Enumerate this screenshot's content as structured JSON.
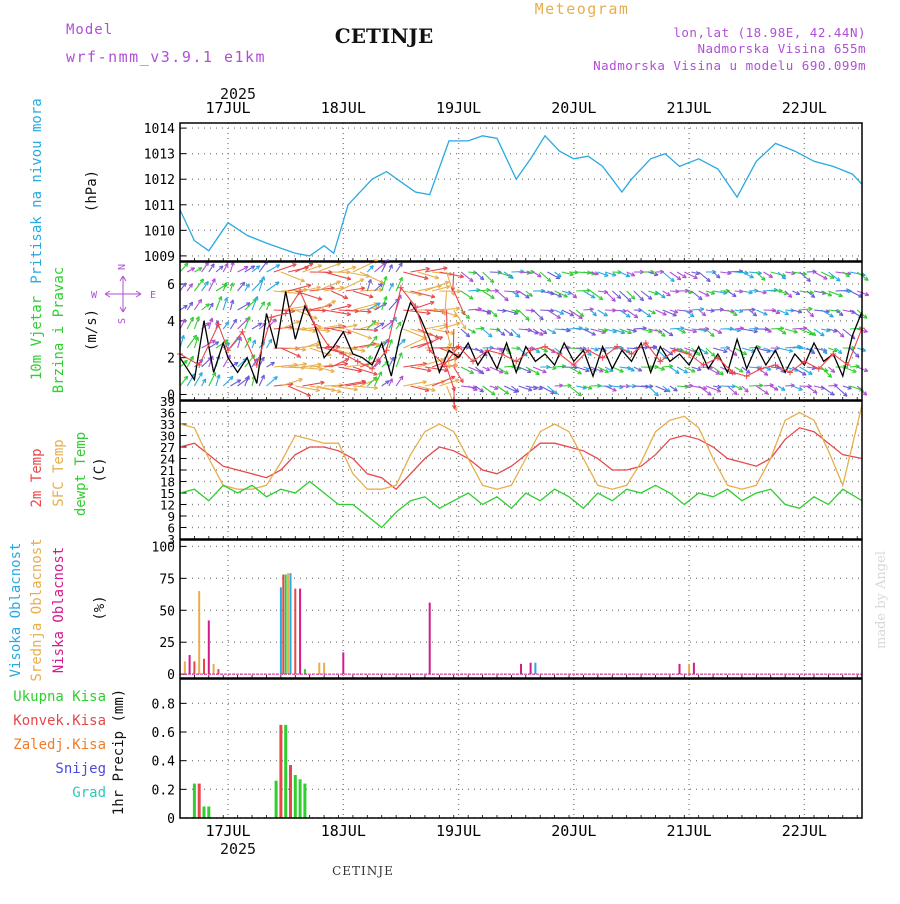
{
  "header": {
    "model_label": "Model",
    "model_name": "wrf-nmm_v3.9.1 e1km",
    "station": "CETINJE",
    "meteogram": "Meteogram",
    "lonlat": "lon,lat (18.98E, 42.44N)",
    "altitude": "Nadmorska Visina 655m",
    "model_altitude": "Nadmorska Visina u modelu 690.099m"
  },
  "time_axis": {
    "year": "2025",
    "days": [
      "17JUL",
      "18JUL",
      "19JUL",
      "20JUL",
      "21JUL",
      "22JUL"
    ],
    "start_hour_offset": -10,
    "end_hour_offset": 132
  },
  "panels": {
    "pressure": {
      "label": "Pritisak na nivou mora",
      "unit": "(hPa)"
    },
    "wind": {
      "label1": "10m Vjetar",
      "label2": "Brzina i Pravac",
      "unit": "(m/s)",
      "compass_w": "W",
      "compass_e": "E",
      "compass_n": "N",
      "compass_s": "S"
    },
    "temp": {
      "label1": "2m Temp",
      "label2": "SFC Temp",
      "label3": "dewpt Temp",
      "unit": "(C)"
    },
    "cloud": {
      "label1": "Visoka Oblacnost",
      "label2": "Srednja Oblacnost",
      "label3": "Niska Oblacnost",
      "unit": "(%)"
    },
    "precip": {
      "label1": "Ukupna Kisa",
      "label2": "Konvek.Kisa",
      "label3": "Zaledj.Kisa",
      "label4": "Snijeg",
      "label5": "Grad",
      "unit": "1hr Precip (mm)"
    }
  },
  "footer": {
    "station": "CETINJE",
    "watermark": "made by Angel"
  },
  "colors": {
    "pressure": "#29a9e1",
    "temp2m": "#e8474a",
    "sfc": "#e8ae4c",
    "dew": "#2fcf2f",
    "high_cloud": "#29a9e1",
    "mid_cloud": "#e8ae4c",
    "low_cloud": "#d21b8c",
    "rain_total": "#2fcf2f",
    "rain_conv": "#e8474a",
    "freezing": "#f07c2a",
    "snow": "#4a4ae0",
    "hail": "#2fc9b6",
    "label_purple": "#b04fd6",
    "label_orange": "#e8ae4c",
    "wind_speed": "#000000",
    "gust": "#e8474a"
  },
  "chart_data": [
    {
      "type": "line",
      "panel": "pressure",
      "ylim": [
        1008.8,
        1014.2
      ],
      "yticks": [
        1009,
        1010,
        1011,
        1012,
        1013,
        1014
      ],
      "x_unit": "hours from 00UTC 17JUL",
      "series": [
        {
          "color": "#29a9e1",
          "x": [
            -10,
            -7,
            -4,
            0,
            4,
            8,
            11,
            14,
            17,
            20,
            22,
            25,
            28,
            30,
            33,
            36,
            39,
            42,
            46,
            50,
            53,
            56,
            60,
            63,
            66,
            69,
            72,
            75,
            78,
            82,
            84,
            88,
            91,
            94,
            98,
            102,
            106,
            110,
            114,
            118,
            122,
            126,
            130,
            132
          ],
          "y": [
            1010.8,
            1009.6,
            1009.2,
            1010.3,
            1009.8,
            1009.5,
            1009.3,
            1009.1,
            1009.0,
            1009.4,
            1009.1,
            1011.0,
            1011.6,
            1012.0,
            1012.3,
            1011.9,
            1011.5,
            1011.4,
            1013.5,
            1013.5,
            1013.7,
            1013.6,
            1012.0,
            1012.8,
            1013.7,
            1013.1,
            1012.8,
            1012.9,
            1012.5,
            1011.5,
            1012.0,
            1012.8,
            1013.0,
            1012.5,
            1012.8,
            1012.4,
            1011.3,
            1012.7,
            1013.4,
            1013.1,
            1012.7,
            1012.5,
            1012.2,
            1011.8
          ]
        }
      ]
    },
    {
      "type": "line",
      "panel": "wind",
      "ylim": [
        -0.3,
        7.2
      ],
      "yticks": [
        0,
        2,
        4,
        6
      ],
      "series": [
        {
          "name": "speed",
          "color": "#000000",
          "x": [
            -10,
            -7,
            -5,
            -3,
            -1,
            0,
            2,
            4,
            6,
            8,
            10,
            12,
            14,
            16,
            18,
            20,
            22,
            24,
            26,
            28,
            30,
            32,
            34,
            36,
            38,
            40,
            42,
            44,
            46,
            48,
            50,
            52,
            54,
            56,
            58,
            60,
            62,
            64,
            66,
            68,
            70,
            72,
            74,
            76,
            78,
            80,
            82,
            84,
            86,
            88,
            90,
            92,
            94,
            96,
            98,
            100,
            102,
            104,
            106,
            108,
            110,
            112,
            114,
            116,
            118,
            120,
            122,
            124,
            126,
            128,
            130,
            132
          ],
          "y": [
            2.0,
            0.8,
            4.0,
            1.2,
            2.8,
            2.0,
            1.2,
            2.0,
            0.6,
            4.4,
            2.5,
            5.6,
            3.0,
            4.8,
            3.8,
            2.0,
            2.6,
            3.4,
            2.2,
            2.0,
            1.6,
            2.8,
            1.0,
            3.4,
            5.0,
            4.2,
            3.0,
            1.2,
            2.4,
            2.0,
            2.8,
            1.6,
            2.4,
            1.4,
            2.8,
            1.2,
            2.6,
            1.8,
            2.2,
            1.6,
            2.8,
            1.8,
            2.4,
            1.0,
            2.6,
            1.4,
            2.4,
            1.8,
            2.8,
            1.2,
            2.6,
            1.8,
            2.2,
            1.6,
            2.6,
            1.4,
            2.2,
            1.2,
            3.0,
            1.4,
            2.6,
            1.6,
            2.4,
            1.2,
            2.2,
            1.6,
            2.8,
            1.8,
            2.2,
            1.0,
            3.2,
            4.5
          ]
        },
        {
          "name": "gust",
          "color": "#e8474a",
          "x": [
            -10,
            -6,
            -2,
            0,
            3,
            6,
            9,
            12,
            15,
            18,
            21,
            24,
            27,
            30,
            33,
            36,
            39,
            42,
            45,
            48,
            51,
            54,
            57,
            60,
            63,
            66,
            69,
            72,
            75,
            78,
            81,
            84,
            87,
            90,
            93,
            96,
            99,
            102,
            105,
            108,
            111,
            114,
            117,
            120,
            123,
            126,
            129,
            132
          ],
          "y": [
            2.2,
            1.6,
            3.8,
            2.4,
            3.4,
            1.6,
            4.2,
            4.4,
            5.6,
            3.8,
            2.6,
            2.2,
            1.8,
            1.4,
            2.4,
            5.8,
            4.8,
            2.4,
            1.6,
            2.6,
            1.8,
            2.4,
            2.2,
            1.8,
            2.4,
            2.6,
            2.2,
            1.6,
            2.4,
            2.0,
            2.6,
            2.2,
            2.8,
            1.8,
            2.4,
            2.2,
            1.6,
            2.0,
            1.2,
            1.0,
            1.4,
            1.6,
            1.2,
            1.8,
            1.4,
            2.2,
            1.6,
            3.6
          ]
        }
      ]
    },
    {
      "type": "line",
      "panel": "temperature",
      "ylim": [
        3,
        39
      ],
      "yticks": [
        3,
        6,
        9,
        12,
        15,
        18,
        21,
        24,
        27,
        30,
        33,
        36,
        39
      ],
      "series": [
        {
          "name": "2m",
          "color": "#e8474a",
          "x": [
            -10,
            -7,
            -4,
            -1,
            2,
            5,
            8,
            11,
            14,
            17,
            20,
            23,
            26,
            29,
            32,
            35,
            38,
            41,
            44,
            47,
            50,
            53,
            56,
            59,
            62,
            65,
            68,
            71,
            74,
            77,
            80,
            83,
            86,
            89,
            92,
            95,
            98,
            101,
            104,
            107,
            110,
            113,
            116,
            119,
            122,
            125,
            128,
            132
          ],
          "y": [
            27,
            28,
            25,
            22,
            21,
            20,
            19,
            21,
            25,
            27,
            27,
            26,
            24,
            20,
            19,
            16,
            20,
            24,
            27,
            26,
            24,
            21,
            20,
            22,
            25,
            28,
            28,
            27,
            26,
            24,
            21,
            21,
            22,
            25,
            29,
            30,
            29,
            27,
            24,
            23,
            22,
            24,
            29,
            32,
            31,
            28,
            25,
            24
          ]
        },
        {
          "name": "sfc",
          "color": "#e8ae4c",
          "x": [
            -10,
            -7,
            -4,
            -1,
            2,
            5,
            8,
            11,
            14,
            17,
            20,
            23,
            26,
            29,
            32,
            35,
            38,
            41,
            44,
            47,
            50,
            53,
            56,
            59,
            62,
            65,
            68,
            71,
            74,
            77,
            80,
            83,
            86,
            89,
            92,
            95,
            98,
            101,
            104,
            107,
            110,
            113,
            116,
            119,
            122,
            125,
            128,
            132
          ],
          "y": [
            33,
            32,
            24,
            17,
            16,
            16,
            17,
            23,
            30,
            29,
            28,
            28,
            20,
            16,
            16,
            17,
            25,
            31,
            33,
            31,
            24,
            17,
            16,
            17,
            24,
            31,
            33,
            31,
            24,
            17,
            16,
            17,
            23,
            31,
            34,
            35,
            32,
            24,
            17,
            16,
            17,
            24,
            34,
            36,
            34,
            26,
            17,
            38
          ]
        },
        {
          "name": "dew",
          "color": "#2fcf2f",
          "x": [
            -10,
            -7,
            -4,
            -1,
            2,
            5,
            8,
            11,
            14,
            17,
            20,
            23,
            26,
            29,
            32,
            35,
            38,
            41,
            44,
            47,
            50,
            53,
            56,
            59,
            62,
            65,
            68,
            71,
            74,
            77,
            80,
            83,
            86,
            89,
            92,
            95,
            98,
            101,
            104,
            107,
            110,
            113,
            116,
            119,
            122,
            125,
            128,
            132
          ],
          "y": [
            15,
            16,
            13,
            17,
            15,
            17,
            14,
            16,
            15,
            18,
            15,
            12,
            12,
            9,
            6,
            10,
            13,
            14,
            11,
            13,
            15,
            12,
            14,
            11,
            15,
            13,
            16,
            14,
            11,
            15,
            13,
            16,
            15,
            17,
            15,
            12,
            15,
            14,
            16,
            13,
            15,
            16,
            12,
            11,
            14,
            12,
            16,
            13
          ]
        }
      ]
    },
    {
      "type": "bar",
      "panel": "cloud",
      "ylim": [
        -3,
        105
      ],
      "yticks": [
        0,
        25,
        50,
        75,
        100
      ],
      "bars": [
        {
          "x": -9,
          "color": "#e8ae4c",
          "v": 10
        },
        {
          "x": -8,
          "color": "#d21b8c",
          "v": 15
        },
        {
          "x": -7,
          "color": "#e8474a",
          "v": 10
        },
        {
          "x": -6,
          "color": "#e8ae4c",
          "v": 65
        },
        {
          "x": -5,
          "color": "#e8474a",
          "v": 12
        },
        {
          "x": -4,
          "color": "#d21b8c",
          "v": 42
        },
        {
          "x": -3,
          "color": "#e8ae4c",
          "v": 8
        },
        {
          "x": -2,
          "color": "#e8474a",
          "v": 4
        },
        {
          "x": 11,
          "color": "#29a9e1",
          "v": 68
        },
        {
          "x": 11.5,
          "color": "#e8474a",
          "v": 78
        },
        {
          "x": 12,
          "color": "#2fcf2f",
          "v": 78
        },
        {
          "x": 12.5,
          "color": "#e8ae4c",
          "v": 79
        },
        {
          "x": 13,
          "color": "#29a9e1",
          "v": 79
        },
        {
          "x": 14,
          "color": "#e8474a",
          "v": 67
        },
        {
          "x": 15,
          "color": "#d21b8c",
          "v": 67
        },
        {
          "x": 16,
          "color": "#2fcf2f",
          "v": 4
        },
        {
          "x": 19,
          "color": "#e8ae4c",
          "v": 9
        },
        {
          "x": 20,
          "color": "#e8ae4c",
          "v": 9
        },
        {
          "x": 24,
          "color": "#d21b8c",
          "v": 17
        },
        {
          "x": 42,
          "color": "#d21b8c",
          "v": 56
        },
        {
          "x": 61,
          "color": "#d21b8c",
          "v": 8
        },
        {
          "x": 63,
          "color": "#d21b8c",
          "v": 9
        },
        {
          "x": 64,
          "color": "#29a9e1",
          "v": 9
        },
        {
          "x": 94,
          "color": "#d21b8c",
          "v": 8
        },
        {
          "x": 96,
          "color": "#e8ae4c",
          "v": 8
        },
        {
          "x": 97,
          "color": "#d21b8c",
          "v": 9
        }
      ]
    },
    {
      "type": "bar",
      "panel": "precip",
      "ylim": [
        0,
        0.97
      ],
      "yticks": [
        0,
        0.2,
        0.4,
        0.6,
        0.8
      ],
      "bars": [
        {
          "x": -7,
          "color": "#2fcf2f",
          "v": 0.24
        },
        {
          "x": -6,
          "color": "#e8474a",
          "v": 0.24
        },
        {
          "x": -5,
          "color": "#2fcf2f",
          "v": 0.08
        },
        {
          "x": -4,
          "color": "#2fcf2f",
          "v": 0.08
        },
        {
          "x": 10,
          "color": "#2fcf2f",
          "v": 0.26
        },
        {
          "x": 11,
          "color": "#e8474a",
          "v": 0.65
        },
        {
          "x": 12,
          "color": "#2fcf2f",
          "v": 0.65
        },
        {
          "x": 13,
          "color": "#e8474a",
          "v": 0.37
        },
        {
          "x": 14,
          "color": "#2fcf2f",
          "v": 0.3
        },
        {
          "x": 15,
          "color": "#2fcf2f",
          "v": 0.27
        },
        {
          "x": 16,
          "color": "#2fcf2f",
          "v": 0.24
        }
      ]
    }
  ]
}
